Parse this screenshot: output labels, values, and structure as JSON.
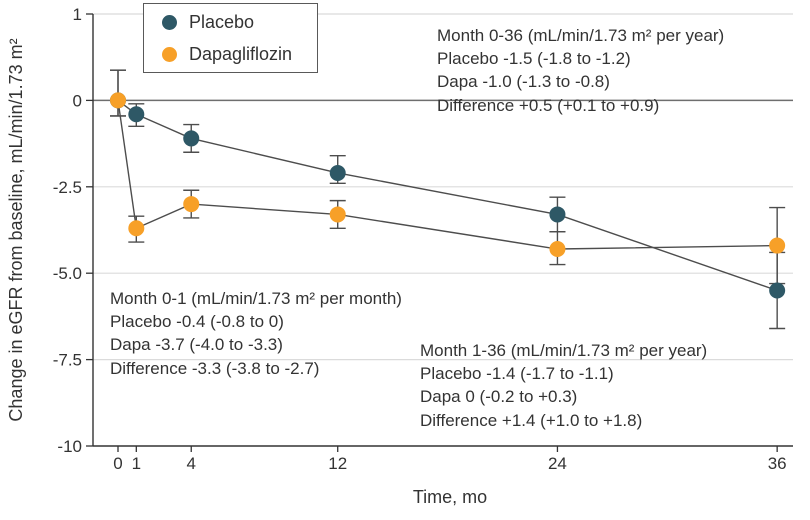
{
  "chart_data": {
    "type": "line",
    "xlabel": "Time, mo",
    "ylabel": "Change in eGFR from baseline, mL/min/1.73 m²",
    "x_ticks": [
      0,
      1,
      4,
      12,
      24,
      36
    ],
    "y_ticks": [
      1,
      0,
      -2.5,
      -5.0,
      -7.5,
      -10
    ],
    "y_tick_labels": [
      "1",
      "0",
      "-2.5",
      "-5.0",
      "-7.5",
      "-10"
    ],
    "gridline_values": [
      1,
      -2.5,
      -5.0,
      -7.5
    ],
    "zero_line_value": 0,
    "x_range": [
      0,
      36
    ],
    "y_range": [
      -10,
      1
    ],
    "legend_position": "top-left",
    "grid": true,
    "x": [
      0,
      1,
      4,
      12,
      24,
      36
    ],
    "series": [
      {
        "name": "Placebo",
        "color": "#2E5866",
        "values": [
          0,
          -0.4,
          -1.1,
          -2.1,
          -3.3,
          -5.5
        ],
        "ci_low": [
          -0.45,
          -0.75,
          -1.5,
          -2.4,
          -3.8,
          -6.6
        ],
        "ci_high": [
          0.35,
          -0.1,
          -0.7,
          -1.6,
          -2.8,
          -4.4
        ]
      },
      {
        "name": "Dapagliflozin",
        "color": "#F7A028",
        "values": [
          0,
          -3.7,
          -3.0,
          -3.3,
          -4.3,
          -4.2
        ],
        "ci_low": [
          -0.45,
          -4.1,
          -3.4,
          -3.7,
          -4.75,
          -5.3
        ],
        "ci_high": [
          0.35,
          -3.35,
          -2.6,
          -2.9,
          -3.8,
          -3.1
        ]
      }
    ]
  },
  "annotations": {
    "month_0_36": {
      "lines": [
        "Month 0-36 (mL/min/1.73 m² per year)",
        "Placebo -1.5 (-1.8 to -1.2)",
        "Dapa -1.0 (-1.3 to -0.8)",
        "Difference +0.5 (+0.1 to +0.9)"
      ]
    },
    "month_0_1": {
      "lines": [
        "Month 0-1 (mL/min/1.73 m² per month)",
        "Placebo -0.4 (-0.8 to 0)",
        "Dapa -3.7 (-4.0 to -3.3)",
        "Difference -3.3 (-3.8 to -2.7)"
      ]
    },
    "month_1_36": {
      "lines": [
        "Month 1-36 (mL/min/1.73 m² per year)",
        "Placebo -1.4 (-1.7 to -1.1)",
        "Dapa 0 (-0.2 to +0.3)",
        "Difference +1.4 (+1.0 to +1.8)"
      ]
    }
  },
  "colors": {
    "series_line": "#4D4D4D",
    "error_bar": "#4D4D4D",
    "gridline": "#DBDBDB",
    "zero_line": "#6E6E6E",
    "axis": "#333333",
    "text": "#333333",
    "legend_border": "#595959",
    "background": "#FFFFFF"
  }
}
